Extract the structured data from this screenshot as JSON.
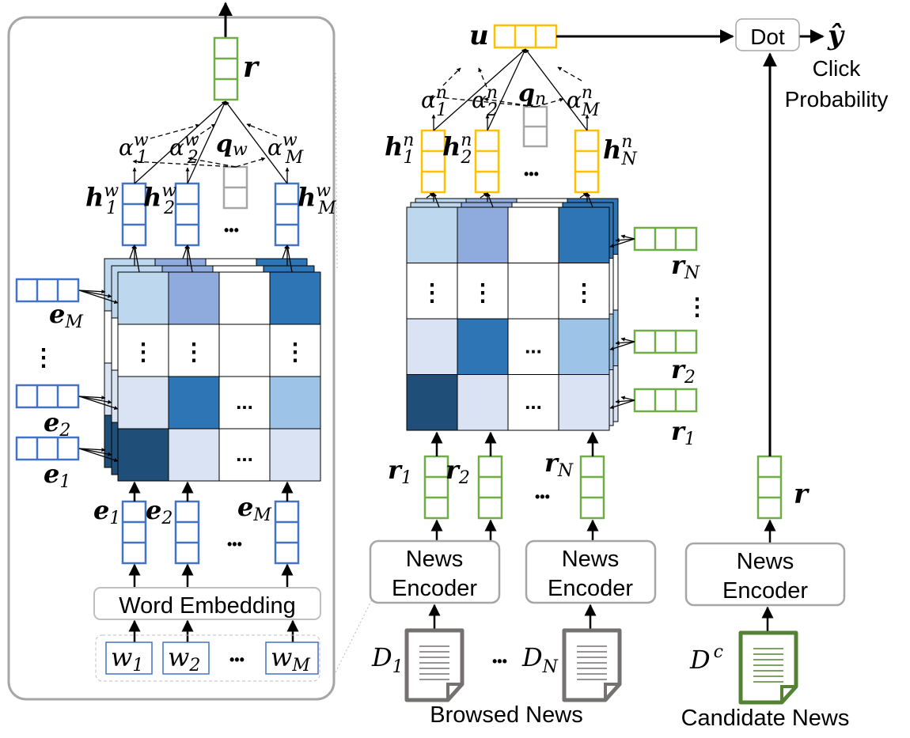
{
  "colors": {
    "word_vector": "#4472c4",
    "news_vector": "#70ad47",
    "user_vector": "#ffc000",
    "query_vector": "#a6a6a6",
    "panel_border": "#a6a6a6"
  },
  "word_attention_matrix": [
    [
      "#bdd7ee",
      "#8faadc",
      "#ffffff",
      "#2e75b6"
    ],
    [
      "#ffffff",
      "#ffffff",
      "#ffffff",
      "#ffffff"
    ],
    [
      "#dae3f3",
      "#2e75b6",
      "#ffffff",
      "#9dc3e6"
    ],
    [
      "#1f4e79",
      "#dae3f3",
      "#ffffff",
      "#dae3f3"
    ]
  ],
  "news_attention_matrix": [
    [
      "#bdd7ee",
      "#8faadc",
      "#ffffff",
      "#2e75b6"
    ],
    [
      "#ffffff",
      "#ffffff",
      "#ffffff",
      "#ffffff"
    ],
    [
      "#dae3f3",
      "#2e75b6",
      "#ffffff",
      "#9dc3e6"
    ],
    [
      "#1f4e79",
      "#dae3f3",
      "#ffffff",
      "#dae3f3"
    ]
  ],
  "news_encoder": {
    "r": "r",
    "alpha1": {
      "base": "α",
      "sup": "w",
      "sub": "1"
    },
    "alpha2": {
      "base": "α",
      "sup": "w",
      "sub": "2"
    },
    "alphaM": {
      "base": "α",
      "sup": "w",
      "sub": "M"
    },
    "q": {
      "base": "q",
      "sub": "w"
    },
    "h1": {
      "base": "h",
      "sup": "w",
      "sub": "1"
    },
    "h2": {
      "base": "h",
      "sup": "w",
      "sub": "2"
    },
    "hM": {
      "base": "h",
      "sup": "w",
      "sub": "M"
    },
    "eM_side": {
      "base": "e",
      "sub": "M"
    },
    "e2_side": {
      "base": "e",
      "sub": "2"
    },
    "e1_side": {
      "base": "e",
      "sub": "1"
    },
    "e1": {
      "base": "e",
      "sub": "1"
    },
    "e2": {
      "base": "e",
      "sub": "2"
    },
    "eM": {
      "base": "e",
      "sub": "M"
    },
    "word_embedding": "Word Embedding",
    "w1": {
      "base": "w",
      "sub": "1"
    },
    "w2": {
      "base": "w",
      "sub": "2"
    },
    "wM": {
      "base": "w",
      "sub": "M"
    },
    "ellipsis": "•••",
    "vdots": "⋮",
    "hdots": "..."
  },
  "user_encoder": {
    "u": "u",
    "alpha1": {
      "base": "α",
      "sup": "n",
      "sub": "1"
    },
    "alpha2": {
      "base": "α",
      "sup": "n",
      "sub": "2"
    },
    "alphaM": {
      "base": "α",
      "sup": "n",
      "sub": "M"
    },
    "q": {
      "base": "q",
      "sub": "n"
    },
    "h1": {
      "base": "h",
      "sup": "n",
      "sub": "1"
    },
    "h2": {
      "base": "h",
      "sup": "n",
      "sub": "2"
    },
    "hN": {
      "base": "h",
      "sup": "n",
      "sub": "N"
    },
    "rN_side": {
      "base": "r",
      "sub": "N"
    },
    "r2_side": {
      "base": "r",
      "sub": "2"
    },
    "r1_side": {
      "base": "r",
      "sub": "1"
    },
    "r1": {
      "base": "r",
      "sub": "1"
    },
    "r2": {
      "base": "r",
      "sub": "2"
    },
    "rN": {
      "base": "r",
      "sub": "N"
    },
    "encoder_line1": "News",
    "encoder_line2": "Encoder",
    "D1": {
      "base": "D",
      "sub": "1"
    },
    "DN": {
      "base": "D",
      "sub": "N"
    },
    "browsed_news": "Browsed News"
  },
  "candidate": {
    "r": "r",
    "encoder_line1": "News",
    "encoder_line2": "Encoder",
    "Dc": {
      "base": "D",
      "sup": "c"
    },
    "candidate_news": "Candidate News"
  },
  "scorer": {
    "dot": "Dot",
    "y_hat": "ŷ",
    "click_line1": "Click",
    "click_line2": "Probability"
  }
}
